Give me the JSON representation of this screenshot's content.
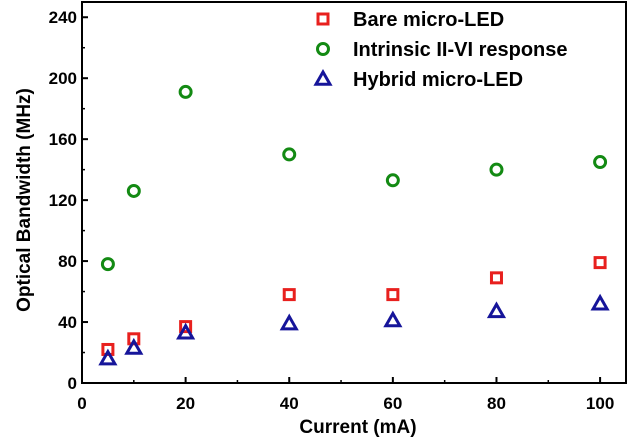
{
  "chart_data": {
    "type": "scatter",
    "xlabel": "Current (mA)",
    "ylabel": "Optical Bandwidth (MHz)",
    "xlim": [
      0,
      105
    ],
    "ylim": [
      0,
      250
    ],
    "x_ticks": [
      0,
      20,
      40,
      60,
      80,
      100
    ],
    "y_ticks": [
      0,
      40,
      80,
      120,
      160,
      200,
      240
    ],
    "grid": false,
    "legend_position": "top-right",
    "series": [
      {
        "name": "Bare micro-LED",
        "marker": "square",
        "color": "#e8201e",
        "x": [
          5,
          10,
          20,
          40,
          60,
          80,
          100
        ],
        "y": [
          22,
          29,
          37,
          58,
          58,
          69,
          79
        ]
      },
      {
        "name": "Intrinsic II-VI response",
        "marker": "circle",
        "color": "#138a13",
        "x": [
          5,
          10,
          20,
          40,
          60,
          80,
          100
        ],
        "y": [
          78,
          126,
          191,
          150,
          133,
          140,
          145
        ]
      },
      {
        "name": "Hybrid micro-LED",
        "marker": "triangle",
        "color": "#16159a",
        "x": [
          5,
          10,
          20,
          40,
          60,
          80,
          100
        ],
        "y": [
          16,
          23,
          33,
          39,
          41,
          47,
          52
        ]
      }
    ]
  }
}
